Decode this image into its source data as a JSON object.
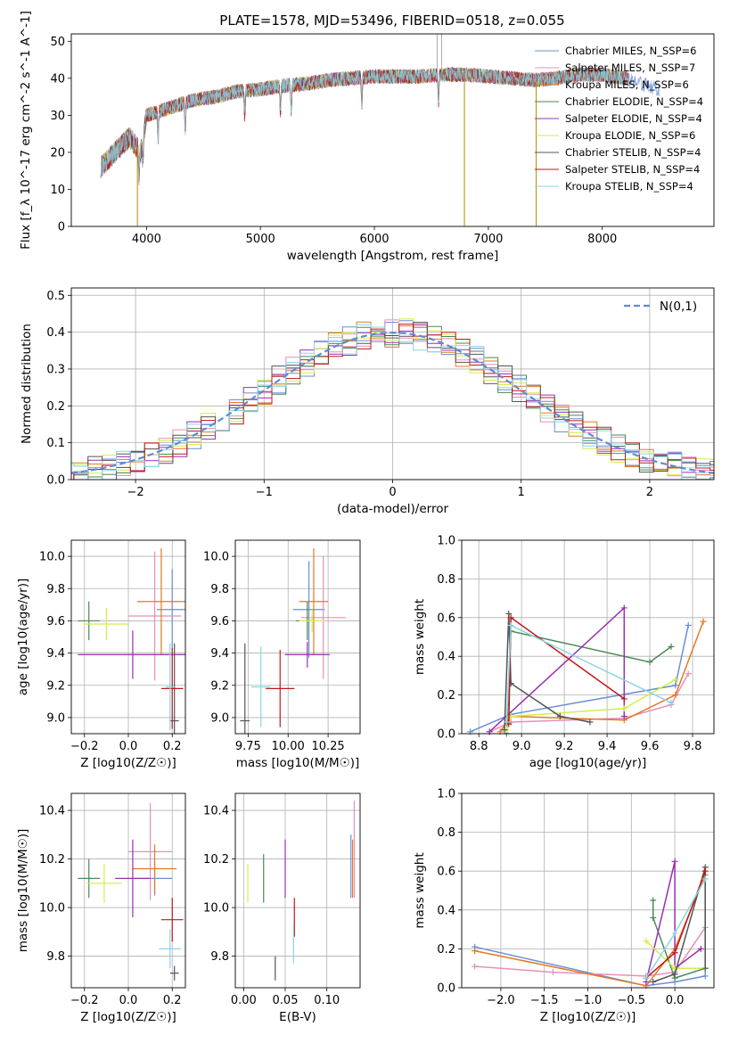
{
  "figure": {
    "title": "PLATE=1578, MJD=53496, FIBERID=0518, z=0.055",
    "models": [
      {
        "name": "Chabrier MILES, N_SSP=6",
        "color": "#6b8ed6"
      },
      {
        "name": "Salpeter MILES, N_SSP=7",
        "color": "#e88fb8"
      },
      {
        "name": "Kroupa MILES, N_SSP=6",
        "color": "#e37a22"
      },
      {
        "name": "Chabrier ELODIE, N_SSP=4",
        "color": "#4a8a55"
      },
      {
        "name": "Salpeter ELODIE, N_SSP=4",
        "color": "#9a2fb0"
      },
      {
        "name": "Kroupa ELODIE, N_SSP=6",
        "color": "#d2ee4a"
      },
      {
        "name": "Chabrier STELIB, N_SSP=4",
        "color": "#555555"
      },
      {
        "name": "Salpeter STELIB, N_SSP=4",
        "color": "#c01818"
      },
      {
        "name": "Kroupa STELIB, N_SSP=4",
        "color": "#8ad4e8"
      }
    ]
  },
  "chart_data": [
    {
      "type": "line",
      "id": "spectrum",
      "xlabel": "wavelength [Angstrom, rest frame]",
      "ylabel": "Flux [f_λ 10^-17 erg cm^-2 s^-1 A^-1]",
      "xlim": [
        3340,
        8980
      ],
      "ylim": [
        0,
        52
      ],
      "xticks": [
        4000,
        5000,
        6000,
        7000,
        8000
      ],
      "yticks": [
        0,
        10,
        20,
        30,
        40,
        50
      ],
      "grid": false,
      "legend": "top-right",
      "continuum": [
        [
          3600,
          16
        ],
        [
          3750,
          21
        ],
        [
          3850,
          24
        ],
        [
          3950,
          20
        ],
        [
          4000,
          30
        ],
        [
          4200,
          32
        ],
        [
          4400,
          34
        ],
        [
          4600,
          35
        ],
        [
          4800,
          36.5
        ],
        [
          5000,
          37
        ],
        [
          5200,
          38
        ],
        [
          5400,
          38.5
        ],
        [
          5600,
          39.5
        ],
        [
          5800,
          40
        ],
        [
          6000,
          40.5
        ],
        [
          6200,
          40.5
        ],
        [
          6400,
          40.5
        ],
        [
          6600,
          41
        ],
        [
          6800,
          41
        ],
        [
          7000,
          40.5
        ],
        [
          7200,
          40
        ],
        [
          7400,
          39.5
        ],
        [
          7600,
          40
        ],
        [
          7800,
          41
        ],
        [
          8000,
          41
        ],
        [
          8200,
          40
        ],
        [
          8400,
          38
        ],
        [
          8500,
          37
        ]
      ]
    },
    {
      "type": "line",
      "id": "residual-histogram",
      "xlabel": "(data-model)/error",
      "ylabel": "Normed distribution",
      "xlim": [
        -2.5,
        2.5
      ],
      "ylim": [
        0,
        0.52
      ],
      "xticks": [
        -2,
        -1,
        0,
        1,
        2
      ],
      "yticks": [
        0.0,
        0.1,
        0.2,
        0.3,
        0.4,
        0.5
      ],
      "grid": true,
      "legend": "top-right",
      "reference_label": "N(0,1)",
      "bin_width": 0.11
    },
    {
      "type": "scatter",
      "id": "age-vs-metallicity",
      "xlabel": "Z [log10(Z/Z☉)]",
      "ylabel": "age [log10(age/yr)]",
      "xlim": [
        -0.26,
        0.26
      ],
      "ylim": [
        8.9,
        10.1
      ],
      "xticks": [
        -0.2,
        0.0,
        0.2
      ],
      "yticks": [
        9.0,
        9.2,
        9.4,
        9.6,
        9.8,
        10.0
      ],
      "grid": true,
      "points": [
        {
          "model": 0,
          "x": 0.2,
          "y": 9.67,
          "ex": 0.07,
          "ey": 0.25
        },
        {
          "model": 1,
          "x": 0.12,
          "y": 9.63,
          "ex": 0.12,
          "ey": 0.4
        },
        {
          "model": 2,
          "x": 0.15,
          "y": 9.72,
          "ex": 0.11,
          "ey": 0.33
        },
        {
          "model": 3,
          "x": -0.18,
          "y": 9.6,
          "ex": 0.05,
          "ey": 0.12
        },
        {
          "model": 4,
          "x": 0.02,
          "y": 9.39,
          "ex": 0.25,
          "ey": 0.15
        },
        {
          "model": 5,
          "x": -0.1,
          "y": 9.58,
          "ex": 0.1,
          "ey": 0.1
        },
        {
          "model": 6,
          "x": 0.21,
          "y": 8.98,
          "ex": 0.02,
          "ey": 0.48
        },
        {
          "model": 7,
          "x": 0.2,
          "y": 9.18,
          "ex": 0.05,
          "ey": 0.25
        },
        {
          "model": 8,
          "x": 0.19,
          "y": 9.19,
          "ex": 0.02,
          "ey": 0.27
        }
      ]
    },
    {
      "type": "scatter",
      "id": "age-vs-mass",
      "xlabel": "mass [log10(M/M☉)]",
      "ylabel": "",
      "xlim": [
        9.67,
        10.45
      ],
      "ylim": [
        8.9,
        10.1
      ],
      "xticks": [
        9.75,
        10.0,
        10.25
      ],
      "yticks": [
        9.0,
        9.2,
        9.4,
        9.6,
        9.8,
        10.0
      ],
      "grid": true,
      "points": [
        {
          "model": 0,
          "x": 10.13,
          "y": 9.67,
          "ex": 0.1,
          "ey": 0.3
        },
        {
          "model": 1,
          "x": 10.22,
          "y": 9.62,
          "ex": 0.14,
          "ey": 0.38
        },
        {
          "model": 2,
          "x": 10.16,
          "y": 9.72,
          "ex": 0.09,
          "ey": 0.33
        },
        {
          "model": 3,
          "x": 10.12,
          "y": 9.6,
          "ex": 0.07,
          "ey": 0.12
        },
        {
          "model": 4,
          "x": 10.12,
          "y": 9.39,
          "ex": 0.14,
          "ey": 0.08
        },
        {
          "model": 5,
          "x": 10.15,
          "y": 9.6,
          "ex": 0.08,
          "ey": 0.07
        },
        {
          "model": 6,
          "x": 9.73,
          "y": 8.98,
          "ex": 0.03,
          "ey": 0.48
        },
        {
          "model": 7,
          "x": 9.95,
          "y": 9.18,
          "ex": 0.09,
          "ey": 0.24
        },
        {
          "model": 8,
          "x": 9.83,
          "y": 9.19,
          "ex": 0.06,
          "ey": 0.25
        }
      ]
    },
    {
      "type": "line",
      "id": "mass-weight-vs-age",
      "xlabel": "age [log10(age/yr)]",
      "ylabel": "mass weight",
      "xlim": [
        8.72,
        9.9
      ],
      "ylim": [
        0.0,
        1.0
      ],
      "xticks": [
        8.8,
        9.0,
        9.2,
        9.4,
        9.6,
        9.8
      ],
      "yticks": [
        0.0,
        0.2,
        0.4,
        0.6,
        0.8,
        1.0
      ],
      "grid": true,
      "series": [
        {
          "model": 0,
          "x": [
            8.76,
            8.95,
            9.72,
            9.78
          ],
          "y": [
            0.01,
            0.1,
            0.25,
            0.56
          ]
        },
        {
          "model": 1,
          "x": [
            8.85,
            8.95,
            9.48,
            9.7,
            9.78
          ],
          "y": [
            0.01,
            0.06,
            0.08,
            0.15,
            0.31
          ]
        },
        {
          "model": 2,
          "x": [
            8.9,
            8.95,
            9.48,
            9.72,
            9.85
          ],
          "y": [
            0.01,
            0.09,
            0.07,
            0.2,
            0.58
          ]
        },
        {
          "model": 3,
          "x": [
            8.93,
            8.95,
            9.6,
            9.7
          ],
          "y": [
            0.0,
            0.53,
            0.37,
            0.45
          ]
        },
        {
          "model": 4,
          "x": [
            8.85,
            9.48,
            9.48
          ],
          "y": [
            0.01,
            0.65,
            0.09
          ]
        },
        {
          "model": 5,
          "x": [
            8.93,
            8.95,
            9.48,
            9.72
          ],
          "y": [
            0.02,
            0.09,
            0.13,
            0.28
          ]
        },
        {
          "model": 6,
          "x": [
            8.92,
            8.94,
            8.95,
            9.18,
            9.32
          ],
          "y": [
            0.02,
            0.62,
            0.26,
            0.09,
            0.06
          ]
        },
        {
          "model": 7,
          "x": [
            8.94,
            8.95,
            9.48
          ],
          "y": [
            0.05,
            0.6,
            0.18
          ]
        },
        {
          "model": 8,
          "x": [
            8.93,
            8.95,
            9.7
          ],
          "y": [
            0.06,
            0.56,
            0.16
          ]
        }
      ]
    },
    {
      "type": "scatter",
      "id": "mass-vs-metallicity",
      "xlabel": "Z [log10(Z/Z☉)]",
      "ylabel": "mass [log10(M/M☉)]",
      "xlim": [
        -0.26,
        0.26
      ],
      "ylim": [
        9.67,
        10.47
      ],
      "xticks": [
        -0.2,
        0.0,
        0.2
      ],
      "yticks": [
        9.8,
        10.0,
        10.2,
        10.4
      ],
      "grid": true,
      "points": [
        {
          "model": 0,
          "x": 0.12,
          "y": 10.12,
          "ex": 0.08,
          "ey": 0.07
        },
        {
          "model": 1,
          "x": 0.1,
          "y": 10.23,
          "ex": 0.1,
          "ey": 0.2
        },
        {
          "model": 2,
          "x": 0.12,
          "y": 10.16,
          "ex": 0.1,
          "ey": 0.1
        },
        {
          "model": 3,
          "x": -0.18,
          "y": 10.12,
          "ex": 0.05,
          "ey": 0.08
        },
        {
          "model": 4,
          "x": 0.02,
          "y": 10.12,
          "ex": 0.08,
          "ey": 0.16
        },
        {
          "model": 5,
          "x": -0.11,
          "y": 10.1,
          "ex": 0.08,
          "ey": 0.08
        },
        {
          "model": 6,
          "x": 0.21,
          "y": 9.73,
          "ex": 0.02,
          "ey": 0.03
        },
        {
          "model": 7,
          "x": 0.2,
          "y": 9.95,
          "ex": 0.05,
          "ey": 0.09
        },
        {
          "model": 8,
          "x": 0.19,
          "y": 9.83,
          "ex": 0.05,
          "ey": 0.08
        }
      ]
    },
    {
      "type": "scatter",
      "id": "mass-vs-extinction",
      "xlabel": "E(B-V)",
      "ylabel": "",
      "xlim": [
        -0.01,
        0.14
      ],
      "ylim": [
        9.67,
        10.47
      ],
      "xticks": [
        0.0,
        0.05,
        0.1
      ],
      "yticks": [
        9.8,
        10.0,
        10.2,
        10.4
      ],
      "grid": true,
      "points": [
        {
          "model": 0,
          "x": 0.129,
          "y": 10.17,
          "ex": 0,
          "ey": 0.13
        },
        {
          "model": 1,
          "x": 0.133,
          "y": 10.24,
          "ex": 0,
          "ey": 0.2
        },
        {
          "model": 2,
          "x": 0.131,
          "y": 10.16,
          "ex": 0,
          "ey": 0.12
        },
        {
          "model": 3,
          "x": 0.024,
          "y": 10.12,
          "ex": 0,
          "ey": 0.1
        },
        {
          "model": 4,
          "x": 0.05,
          "y": 10.16,
          "ex": 0,
          "ey": 0.12
        },
        {
          "model": 5,
          "x": 0.005,
          "y": 10.1,
          "ex": 0,
          "ey": 0.08
        },
        {
          "model": 6,
          "x": 0.038,
          "y": 9.75,
          "ex": 0,
          "ey": 0.05
        },
        {
          "model": 7,
          "x": 0.061,
          "y": 9.96,
          "ex": 0,
          "ey": 0.08
        },
        {
          "model": 8,
          "x": 0.06,
          "y": 9.85,
          "ex": 0,
          "ey": 0.08
        }
      ]
    },
    {
      "type": "line",
      "id": "mass-weight-vs-metallicity",
      "xlabel": "Z [log10(Z/Z☉)]",
      "ylabel": "mass weight",
      "xlim": [
        -2.45,
        0.45
      ],
      "ylim": [
        0.0,
        1.0
      ],
      "xticks": [
        -2.0,
        -1.5,
        -1.0,
        -0.5,
        0.0
      ],
      "yticks": [
        0.0,
        0.2,
        0.4,
        0.6,
        0.8,
        1.0
      ],
      "grid": true,
      "series": [
        {
          "model": 0,
          "x": [
            -2.3,
            -0.33,
            0.0,
            0.35,
            0.35
          ],
          "y": [
            0.21,
            0.01,
            0.03,
            0.06,
            0.56
          ]
        },
        {
          "model": 1,
          "x": [
            -2.3,
            -1.4,
            -0.33,
            0.0,
            0.35
          ],
          "y": [
            0.11,
            0.08,
            0.06,
            0.08,
            0.31
          ]
        },
        {
          "model": 2,
          "x": [
            -2.3,
            -0.33,
            0.0,
            0.35
          ],
          "y": [
            0.19,
            0.01,
            0.2,
            0.58
          ]
        },
        {
          "model": 3,
          "x": [
            -0.25,
            -0.25,
            0.0,
            0.35
          ],
          "y": [
            0.45,
            0.36,
            0.05,
            0.1
          ]
        },
        {
          "model": 4,
          "x": [
            -0.33,
            0.0,
            0.0,
            0.3
          ],
          "y": [
            0.03,
            0.65,
            0.1,
            0.2
          ]
        },
        {
          "model": 5,
          "x": [
            -0.33,
            0.0,
            0.35
          ],
          "y": [
            0.24,
            0.1,
            0.1
          ]
        },
        {
          "model": 6,
          "x": [
            -0.25,
            0.0,
            0.35,
            0.35
          ],
          "y": [
            0.03,
            0.07,
            0.62,
            0.1
          ]
        },
        {
          "model": 7,
          "x": [
            -0.33,
            0.0,
            0.35
          ],
          "y": [
            0.05,
            0.18,
            0.6
          ]
        },
        {
          "model": 8,
          "x": [
            -0.33,
            0.0,
            0.35
          ],
          "y": [
            0.05,
            0.28,
            0.56
          ]
        }
      ]
    }
  ]
}
